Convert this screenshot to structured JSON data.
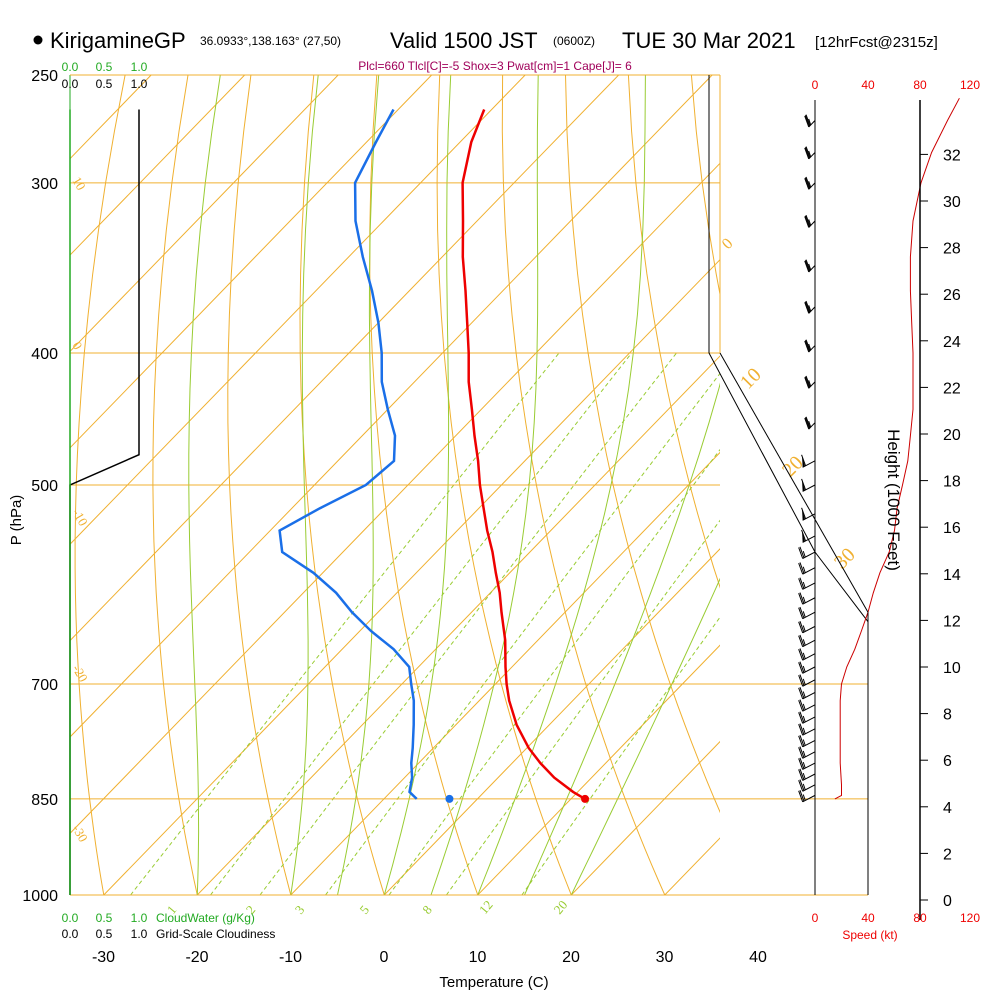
{
  "header": {
    "station": "KirigamineGP",
    "coords": "36.0933°,138.163° (27,50)",
    "valid_prefix": "Valid 1500 JST",
    "valid_utc": "(0600Z)",
    "valid_date": "TUE 30 Mar 2021",
    "forecast": "[12hrFcst@2315z]",
    "params": "Plcl=660 Tlcl[C]=-5 Shox=3 Pwat[cm]=1 Cape[J]= 6"
  },
  "axes": {
    "x_label": "Temperature (C)",
    "y_label": "P (hPa)",
    "height_label": "Height (1000 Feet)",
    "speed_label": "Speed (kt)",
    "cloud_water_label": "CloudWater (g/Kg)",
    "cloudiness_label": "Grid-Scale Cloudiness"
  },
  "scale_labels": {
    "cloud_water_ticks": [
      "0.0",
      "0.5",
      "1.0"
    ],
    "cloudiness_ticks": [
      "0.0",
      "0.5",
      "1.0"
    ],
    "speed_ticks": [
      "0",
      "40",
      "80",
      "120"
    ]
  },
  "colors": {
    "temperature": "#ee0000",
    "dewpoint": "#1a6fe8",
    "isotherm": "#f0b030",
    "adiabat": "#99cc33",
    "mixing_ratio": "#99cc33",
    "cloud": "#000000",
    "wind_speed": "#cc0000"
  },
  "chart_data": {
    "type": "skew-t",
    "temperature_ticks": [
      -30,
      -20,
      -10,
      0,
      10,
      20,
      30,
      40
    ],
    "pressure_ticks": [
      250,
      300,
      400,
      500,
      700,
      850,
      1000
    ],
    "height_ticks_kft": [
      0,
      2,
      4,
      6,
      8,
      10,
      12,
      14,
      16,
      18,
      20,
      22,
      24,
      26,
      28,
      30,
      32
    ],
    "mixing_ratio_labels": [
      "1",
      "2",
      "3",
      "5",
      "8",
      "12",
      "20"
    ],
    "dry_adiabat_labels_left": [
      "10",
      "0",
      "-10",
      "-20",
      "-30"
    ],
    "dry_adiabat_labels_right": [
      "0",
      "10",
      "20",
      "30"
    ],
    "temperature_profile": [
      {
        "p": 850,
        "t": 21.5
      },
      {
        "p": 840,
        "t": 19.5
      },
      {
        "p": 820,
        "t": 16.0
      },
      {
        "p": 800,
        "t": 13.0
      },
      {
        "p": 780,
        "t": 10.2
      },
      {
        "p": 750,
        "t": 6.5
      },
      {
        "p": 720,
        "t": 3.2
      },
      {
        "p": 700,
        "t": 1.2
      },
      {
        "p": 680,
        "t": -0.7
      },
      {
        "p": 650,
        "t": -3.5
      },
      {
        "p": 620,
        "t": -6.8
      },
      {
        "p": 600,
        "t": -9.0
      },
      {
        "p": 580,
        "t": -11.5
      },
      {
        "p": 560,
        "t": -14.0
      },
      {
        "p": 540,
        "t": -16.8
      },
      {
        "p": 520,
        "t": -19.5
      },
      {
        "p": 500,
        "t": -22.3
      },
      {
        "p": 480,
        "t": -25.0
      },
      {
        "p": 460,
        "t": -28.0
      },
      {
        "p": 440,
        "t": -31.0
      },
      {
        "p": 420,
        "t": -34.2
      },
      {
        "p": 400,
        "t": -37.2
      },
      {
        "p": 380,
        "t": -40.5
      },
      {
        "p": 360,
        "t": -44.0
      },
      {
        "p": 340,
        "t": -47.8
      },
      {
        "p": 320,
        "t": -51.5
      },
      {
        "p": 300,
        "t": -55.5
      },
      {
        "p": 280,
        "t": -58.8
      },
      {
        "p": 265,
        "t": -60.8
      }
    ],
    "dewpoint_profile": [
      {
        "p": 850,
        "td": 3.5
      },
      {
        "p": 840,
        "td": 2.0
      },
      {
        "p": 820,
        "td": 0.8
      },
      {
        "p": 800,
        "td": -0.8
      },
      {
        "p": 780,
        "td": -2.2
      },
      {
        "p": 750,
        "td": -4.5
      },
      {
        "p": 720,
        "td": -7.0
      },
      {
        "p": 700,
        "td": -9.0
      },
      {
        "p": 680,
        "td": -11.0
      },
      {
        "p": 660,
        "td": -14.5
      },
      {
        "p": 640,
        "td": -18.8
      },
      {
        "p": 620,
        "td": -22.8
      },
      {
        "p": 600,
        "td": -26.5
      },
      {
        "p": 580,
        "td": -31.0
      },
      {
        "p": 560,
        "td": -36.5
      },
      {
        "p": 540,
        "td": -39.0
      },
      {
        "p": 520,
        "td": -37.0
      },
      {
        "p": 500,
        "td": -34.5
      },
      {
        "p": 480,
        "td": -34.0
      },
      {
        "p": 460,
        "td": -36.5
      },
      {
        "p": 440,
        "td": -40.0
      },
      {
        "p": 420,
        "td": -43.5
      },
      {
        "p": 400,
        "td": -46.5
      },
      {
        "p": 380,
        "td": -50.0
      },
      {
        "p": 360,
        "td": -54.0
      },
      {
        "p": 340,
        "td": -58.5
      },
      {
        "p": 320,
        "td": -63.0
      },
      {
        "p": 300,
        "td": -67.0
      },
      {
        "p": 280,
        "td": -69.0
      },
      {
        "p": 265,
        "td": -70.5
      }
    ],
    "surface_points": [
      {
        "name": "temperature",
        "p": 850,
        "t": 21.5
      },
      {
        "name": "dewpoint",
        "p": 850,
        "t": 7.0
      }
    ],
    "wind_barbs": [
      {
        "p": 845,
        "dir": 250,
        "spd": 25
      },
      {
        "p": 830,
        "dir": 250,
        "spd": 25
      },
      {
        "p": 815,
        "dir": 250,
        "spd": 25
      },
      {
        "p": 800,
        "dir": 250,
        "spd": 25
      },
      {
        "p": 785,
        "dir": 250,
        "spd": 25
      },
      {
        "p": 770,
        "dir": 250,
        "spd": 25
      },
      {
        "p": 755,
        "dir": 250,
        "spd": 25
      },
      {
        "p": 740,
        "dir": 250,
        "spd": 25
      },
      {
        "p": 725,
        "dir": 250,
        "spd": 25
      },
      {
        "p": 710,
        "dir": 250,
        "spd": 25
      },
      {
        "p": 695,
        "dir": 250,
        "spd": 25
      },
      {
        "p": 680,
        "dir": 250,
        "spd": 25
      },
      {
        "p": 665,
        "dir": 250,
        "spd": 25
      },
      {
        "p": 650,
        "dir": 250,
        "spd": 25
      },
      {
        "p": 635,
        "dir": 250,
        "spd": 25
      },
      {
        "p": 620,
        "dir": 250,
        "spd": 25
      },
      {
        "p": 605,
        "dir": 250,
        "spd": 25
      },
      {
        "p": 590,
        "dir": 250,
        "spd": 25
      },
      {
        "p": 575,
        "dir": 250,
        "spd": 25
      },
      {
        "p": 560,
        "dir": 250,
        "spd": 25
      },
      {
        "p": 545,
        "dir": 250,
        "spd": 60
      },
      {
        "p": 525,
        "dir": 250,
        "spd": 60
      },
      {
        "p": 500,
        "dir": 250,
        "spd": 60
      },
      {
        "p": 480,
        "dir": 250,
        "spd": 60
      },
      {
        "p": 450,
        "dir": 260,
        "spd": 35
      },
      {
        "p": 420,
        "dir": 260,
        "spd": 35
      },
      {
        "p": 395,
        "dir": 260,
        "spd": 35
      },
      {
        "p": 370,
        "dir": 260,
        "spd": 35
      },
      {
        "p": 345,
        "dir": 260,
        "spd": 35
      },
      {
        "p": 320,
        "dir": 260,
        "spd": 35
      },
      {
        "p": 300,
        "dir": 260,
        "spd": 35
      },
      {
        "p": 285,
        "dir": 260,
        "spd": 35
      },
      {
        "p": 270,
        "dir": 260,
        "spd": 35
      }
    ],
    "wind_speed_profile": [
      {
        "p": 850,
        "kt": 15
      },
      {
        "p": 845,
        "kt": 20
      },
      {
        "p": 830,
        "kt": 20
      },
      {
        "p": 800,
        "kt": 19
      },
      {
        "p": 760,
        "kt": 19
      },
      {
        "p": 720,
        "kt": 19
      },
      {
        "p": 700,
        "kt": 20
      },
      {
        "p": 680,
        "kt": 24
      },
      {
        "p": 660,
        "kt": 30
      },
      {
        "p": 640,
        "kt": 35
      },
      {
        "p": 620,
        "kt": 40
      },
      {
        "p": 600,
        "kt": 44
      },
      {
        "p": 580,
        "kt": 49
      },
      {
        "p": 560,
        "kt": 56
      },
      {
        "p": 540,
        "kt": 60
      },
      {
        "p": 520,
        "kt": 62
      },
      {
        "p": 500,
        "kt": 66
      },
      {
        "p": 480,
        "kt": 70
      },
      {
        "p": 460,
        "kt": 72
      },
      {
        "p": 440,
        "kt": 74
      },
      {
        "p": 420,
        "kt": 74
      },
      {
        "p": 400,
        "kt": 74
      },
      {
        "p": 380,
        "kt": 73
      },
      {
        "p": 360,
        "kt": 72
      },
      {
        "p": 340,
        "kt": 72
      },
      {
        "p": 320,
        "kt": 74
      },
      {
        "p": 300,
        "kt": 80
      },
      {
        "p": 285,
        "kt": 88
      },
      {
        "p": 270,
        "kt": 100
      },
      {
        "p": 260,
        "kt": 109
      }
    ],
    "cloudiness_profile": [
      {
        "p": 1000,
        "v": 0.0
      },
      {
        "p": 500,
        "v": 0.0
      },
      {
        "p": 475,
        "v": 1.0
      },
      {
        "p": 300,
        "v": 1.0
      },
      {
        "p": 290,
        "v": 1.0
      },
      {
        "p": 265,
        "v": 1.0
      }
    ],
    "cloud_water_profile": [
      {
        "p": 1000,
        "v": 0.0
      },
      {
        "p": 265,
        "v": 0.0
      }
    ],
    "speed_envelope": [
      {
        "p": 1000,
        "kt": 40
      },
      {
        "p": 630,
        "kt": 40
      },
      {
        "p": 560,
        "kt": 0
      },
      {
        "p": 400,
        "kt": -80
      },
      {
        "p": 250,
        "kt": -80
      }
    ]
  }
}
